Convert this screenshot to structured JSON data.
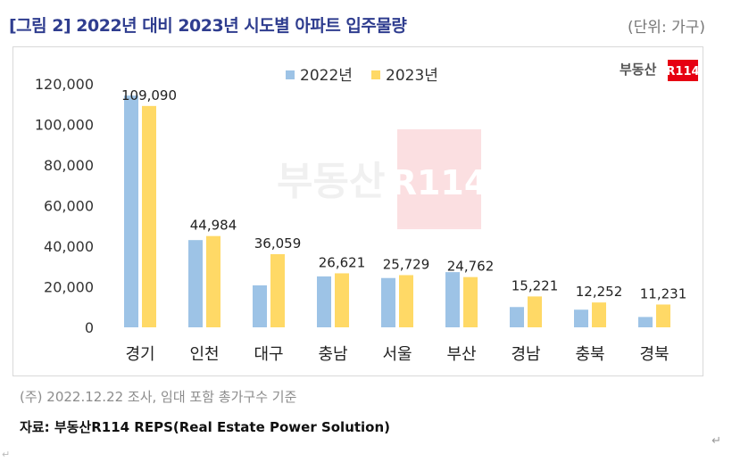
{
  "header": {
    "title": "[그림 2] 2022년 대비 2023년 시도별 아파트 입주물량",
    "unit": "(단위: 가구)"
  },
  "brand": {
    "logo_text": "부동산",
    "logo_badge": "R114",
    "watermark_text": "부동산",
    "watermark_badge": "R114"
  },
  "chart_data": {
    "type": "bar",
    "title": "2022년 대비 2023년 시도별 아파트 입주물량",
    "unit": "가구",
    "categories": [
      "경기",
      "인천",
      "대구",
      "충남",
      "서울",
      "부산",
      "경남",
      "충북",
      "경북"
    ],
    "series": [
      {
        "name": "2022년",
        "color": "#9dc3e6",
        "values": [
          114200,
          43000,
          20700,
          25100,
          24300,
          27200,
          10000,
          8700,
          5100
        ]
      },
      {
        "name": "2023년",
        "color": "#ffd966",
        "values": [
          109090,
          44984,
          36059,
          26621,
          25729,
          24762,
          15221,
          12252,
          11231
        ]
      }
    ],
    "data_labels": [
      "109,090",
      "44,984",
      "36,059",
      "26,621",
      "25,729",
      "24,762",
      "15,221",
      "12,252",
      "11,231"
    ],
    "yticks": [
      "0",
      "20,000",
      "40,000",
      "60,000",
      "80,000",
      "100,000",
      "120,000"
    ],
    "ylim": [
      0,
      120000
    ],
    "legend_position": "top-center",
    "grid": false
  },
  "footer": {
    "note": "(주) 2022.12.22 조사, 임대 포함 총가구수 기준",
    "source": "자료: 부동산R114 REPS(Real Estate Power Solution)",
    "return_mark": "↵",
    "return_mark_left": "↵"
  }
}
